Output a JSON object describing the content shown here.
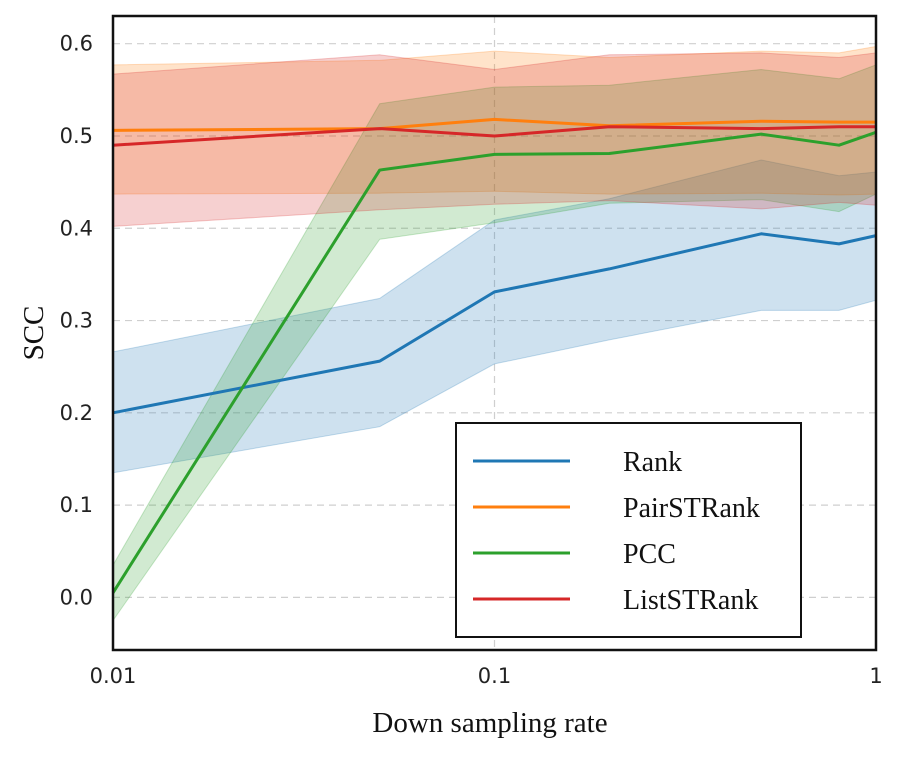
{
  "chart_data": {
    "type": "line",
    "xlabel": "Down sampling rate",
    "ylabel": "SCC",
    "x_scale": "log",
    "xlim": [
      0.01,
      1
    ],
    "ylim": [
      -0.057,
      0.63
    ],
    "x_ticks": [
      {
        "value": 0.01,
        "label": "0.01"
      },
      {
        "value": 0.1,
        "label": "0.1"
      },
      {
        "value": 1,
        "label": "1"
      }
    ],
    "y_ticks": [
      {
        "value": 0.0,
        "label": "0.0"
      },
      {
        "value": 0.1,
        "label": "0.1"
      },
      {
        "value": 0.2,
        "label": "0.2"
      },
      {
        "value": 0.3,
        "label": "0.3"
      },
      {
        "value": 0.4,
        "label": "0.4"
      },
      {
        "value": 0.5,
        "label": "0.5"
      },
      {
        "value": 0.6,
        "label": "0.6"
      }
    ],
    "grid": true,
    "legend_position": "lower-right",
    "x": [
      0.01,
      0.05,
      0.1,
      0.2,
      0.5,
      0.8,
      1.0
    ],
    "series": [
      {
        "name": "Rank",
        "color": "#1f77b4",
        "values": [
          0.2,
          0.256,
          0.331,
          0.356,
          0.394,
          0.383,
          0.392
        ],
        "lower": [
          0.135,
          0.185,
          0.253,
          0.279,
          0.311,
          0.311,
          0.322
        ],
        "upper": [
          0.266,
          0.324,
          0.409,
          0.432,
          0.474,
          0.457,
          0.461
        ]
      },
      {
        "name": "PairSTRank",
        "color": "#ff7f0e",
        "values": [
          0.506,
          0.508,
          0.518,
          0.511,
          0.516,
          0.515,
          0.515
        ],
        "lower": [
          0.437,
          0.438,
          0.44,
          0.437,
          0.438,
          0.436,
          0.437
        ],
        "upper": [
          0.577,
          0.582,
          0.592,
          0.585,
          0.592,
          0.59,
          0.597
        ]
      },
      {
        "name": "PCC",
        "color": "#2ca02c",
        "values": [
          0.005,
          0.463,
          0.48,
          0.481,
          0.502,
          0.49,
          0.504
        ],
        "lower": [
          -0.025,
          0.388,
          0.406,
          0.427,
          0.431,
          0.418,
          0.437
        ],
        "upper": [
          0.035,
          0.535,
          0.553,
          0.555,
          0.572,
          0.562,
          0.577
        ]
      },
      {
        "name": "ListSTRank",
        "color": "#d62728",
        "values": [
          0.49,
          0.508,
          0.5,
          0.51,
          0.508,
          0.51,
          0.51
        ],
        "lower": [
          0.402,
          0.42,
          0.426,
          0.43,
          0.421,
          0.428,
          0.425
        ],
        "upper": [
          0.567,
          0.588,
          0.572,
          0.588,
          0.59,
          0.585,
          0.59
        ]
      }
    ]
  }
}
